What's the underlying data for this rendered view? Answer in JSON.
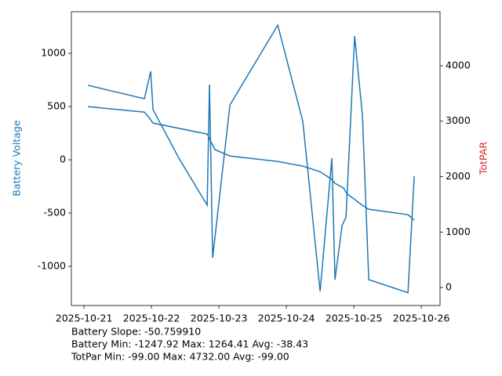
{
  "chart_data": {
    "type": "line",
    "y_label": "Battery Voltage",
    "y2_label": "TotPAR",
    "y_label_color": "#1f77b4",
    "y2_label_color": "#d62728",
    "annotations": [
      "Battery Slope: -50.759910",
      "Battery Min: -1247.92 Max: 1264.41 Avg: -38.43",
      "TotPar Min: -99.00 Max: 4732.00 Avg: -99.00"
    ],
    "xlim": [
      "2025-10-20 19:30",
      "2025-10-26 06:40"
    ],
    "xticks": [
      "2025-10-21",
      "2025-10-22",
      "2025-10-23",
      "2025-10-24",
      "2025-10-25",
      "2025-10-26"
    ],
    "ylim": [
      -1368,
      1390
    ],
    "yticks": [
      -1000,
      -500,
      0,
      500,
      1000
    ],
    "y2lim": [
      -325,
      4975
    ],
    "y2ticks": [
      0,
      1000,
      2000,
      3000,
      4000
    ],
    "series": [
      {
        "color": "#1f77b4",
        "axis": "y",
        "x": [
          "2025-10-21 01:24",
          "2025-10-21 21:29",
          "2025-10-21 23:43",
          "2025-10-22 00:33",
          "2025-10-22 09:46",
          "2025-10-22 19:49",
          "2025-10-22 20:38",
          "2025-10-22 21:46",
          "2025-10-23 03:55",
          "2025-10-23 20:56",
          "2025-10-24 05:51",
          "2025-10-24 12:00",
          "2025-10-24 13:24",
          "2025-10-24 16:11",
          "2025-10-24 17:18",
          "2025-10-24 19:49",
          "2025-10-24 21:13",
          "2025-10-25 00:17",
          "2025-10-25 03:04",
          "2025-10-25 05:18",
          "2025-10-25 19:15",
          "2025-10-25 21:29"
        ],
        "values": [
          699,
          574,
          830,
          471,
          15,
          -426,
          706,
          -919,
          515,
          1264,
          360,
          -1235,
          -816,
          15,
          -1125,
          -618,
          -537,
          1162,
          412,
          -1125,
          -1248,
          -154
        ]
      },
      {
        "color": "#1f77b4",
        "axis": "y2",
        "x": [
          "2025-10-21 01:24",
          "2025-10-21 21:29",
          "2025-10-21 23:10",
          "2025-10-22 00:33",
          "2025-10-22 19:49",
          "2025-10-22 22:36",
          "2025-10-23 03:55",
          "2025-10-23 20:56",
          "2025-10-24 05:51",
          "2025-10-24 12:00",
          "2025-10-24 16:11",
          "2025-10-24 17:18",
          "2025-10-24 20:22",
          "2025-10-24 21:29",
          "2025-10-25 03:04",
          "2025-10-25 05:18",
          "2025-10-25 19:15",
          "2025-10-25 21:29"
        ],
        "values": [
          3263,
          3164,
          3065,
          2966,
          2768,
          2486,
          2373,
          2274,
          2189,
          2090,
          1949,
          1879,
          1794,
          1695,
          1483,
          1412,
          1314,
          1215
        ]
      }
    ]
  }
}
